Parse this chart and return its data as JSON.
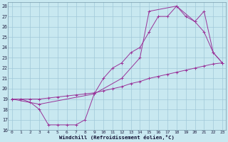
{
  "bg_color": "#c8e8f0",
  "grid_color": "#a0c8d8",
  "line_color": "#993399",
  "xlim": [
    0,
    23
  ],
  "ylim": [
    16,
    28
  ],
  "xticks": [
    0,
    1,
    2,
    3,
    4,
    5,
    6,
    7,
    8,
    9,
    10,
    11,
    12,
    13,
    14,
    15,
    16,
    17,
    18,
    19,
    20,
    21,
    22,
    23
  ],
  "yticks": [
    16,
    17,
    18,
    19,
    20,
    21,
    22,
    23,
    24,
    25,
    26,
    27,
    28
  ],
  "xlabel": "Windchill (Refroidissement éolien,°C)",
  "line1_x": [
    0,
    1,
    2,
    3,
    4,
    5,
    6,
    7,
    8,
    9,
    10,
    11,
    12,
    13,
    14,
    15,
    16,
    17,
    18,
    19,
    20,
    21,
    22,
    23
  ],
  "line1_y": [
    19.0,
    19.0,
    19.0,
    19.0,
    19.1,
    19.2,
    19.3,
    19.4,
    19.5,
    19.6,
    19.8,
    20.0,
    20.2,
    20.5,
    20.7,
    21.0,
    21.2,
    21.4,
    21.6,
    21.8,
    22.0,
    22.2,
    22.4,
    22.5
  ],
  "line2_x": [
    0,
    1,
    2,
    3,
    4,
    5,
    6,
    7,
    8,
    9,
    10,
    11,
    12,
    13,
    14,
    15,
    16,
    17,
    18,
    19,
    20,
    21,
    22,
    23
  ],
  "line2_y": [
    19.0,
    19.0,
    18.7,
    18.0,
    16.5,
    16.5,
    16.5,
    16.5,
    17.0,
    19.5,
    21.0,
    22.0,
    22.5,
    23.5,
    24.0,
    25.5,
    27.0,
    27.0,
    28.0,
    27.0,
    26.5,
    25.5,
    23.5,
    22.5
  ],
  "line3_x": [
    0,
    3,
    9,
    12,
    14,
    15,
    18,
    20,
    21,
    22,
    23
  ],
  "line3_y": [
    19.0,
    18.5,
    19.5,
    21.0,
    23.0,
    27.5,
    28.0,
    26.5,
    27.5,
    23.5,
    22.5
  ]
}
